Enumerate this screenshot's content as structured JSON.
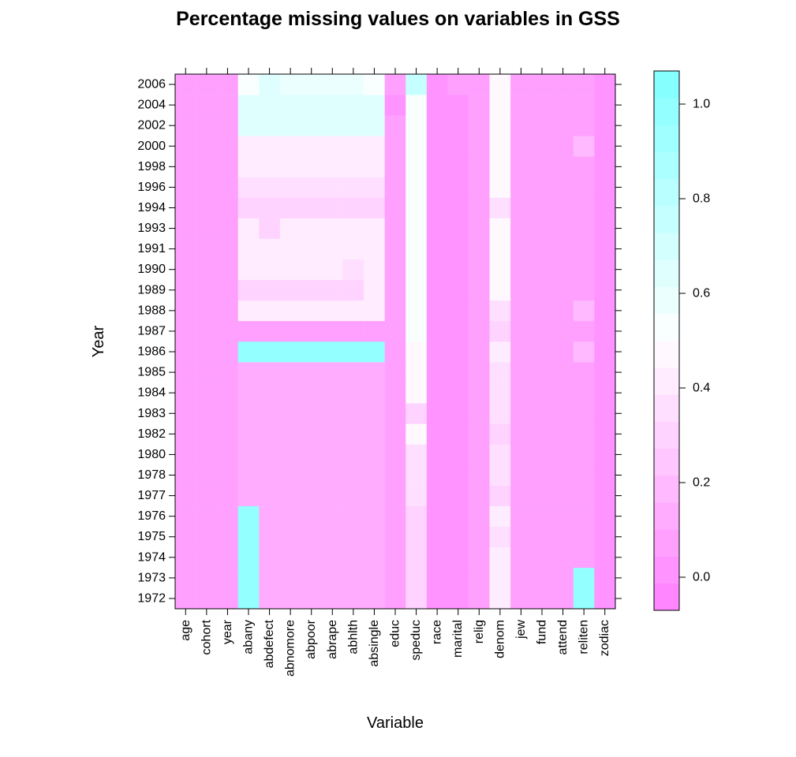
{
  "chart_data": {
    "type": "heatmap",
    "title": "Percentage missing values on variables in GSS",
    "xlabel": "Variable",
    "ylabel": "Year",
    "x_categories": [
      "age",
      "cohort",
      "year",
      "abany",
      "abdefect",
      "abnomore",
      "abpoor",
      "abrape",
      "abhlth",
      "absingle",
      "educ",
      "speduc",
      "race",
      "marital",
      "relig",
      "denom",
      "jew",
      "fund",
      "attend",
      "reliten",
      "zodiac"
    ],
    "y_categories": [
      "1972",
      "1973",
      "1974",
      "1975",
      "1976",
      "1977",
      "1978",
      "1980",
      "1982",
      "1983",
      "1984",
      "1985",
      "1986",
      "1987",
      "1988",
      "1989",
      "1990",
      "1991",
      "1993",
      "1994",
      "1996",
      "1998",
      "2000",
      "2002",
      "2004",
      "2006"
    ],
    "values": [
      [
        0.1,
        0.1,
        0.05,
        1.0,
        0.13,
        0.13,
        0.13,
        0.13,
        0.13,
        0.13,
        0.1,
        0.3,
        0.02,
        0.02,
        0.1,
        0.4,
        0.05,
        0.08,
        0.08,
        1.0,
        0.03
      ],
      [
        0.1,
        0.1,
        0.05,
        1.0,
        0.13,
        0.13,
        0.13,
        0.13,
        0.13,
        0.13,
        0.1,
        0.3,
        0.02,
        0.02,
        0.1,
        0.4,
        0.05,
        0.08,
        0.08,
        1.0,
        0.03
      ],
      [
        0.1,
        0.1,
        0.05,
        1.0,
        0.13,
        0.13,
        0.13,
        0.13,
        0.13,
        0.13,
        0.1,
        0.3,
        0.02,
        0.02,
        0.05,
        0.4,
        0.05,
        0.08,
        0.08,
        0.08,
        0.03
      ],
      [
        0.1,
        0.1,
        0.05,
        1.0,
        0.13,
        0.13,
        0.13,
        0.13,
        0.13,
        0.13,
        0.1,
        0.3,
        0.02,
        0.02,
        0.1,
        0.33,
        0.05,
        0.08,
        0.08,
        0.08,
        0.03
      ],
      [
        0.1,
        0.1,
        0.05,
        1.0,
        0.13,
        0.13,
        0.13,
        0.13,
        0.13,
        0.13,
        0.1,
        0.3,
        0.02,
        0.02,
        0.1,
        0.4,
        0.05,
        0.08,
        0.08,
        0.08,
        0.03
      ],
      [
        0.1,
        0.1,
        0.05,
        0.13,
        0.13,
        0.13,
        0.13,
        0.13,
        0.13,
        0.13,
        0.1,
        0.35,
        0.02,
        0.02,
        0.1,
        0.28,
        0.05,
        0.08,
        0.08,
        0.08,
        0.03
      ],
      [
        0.1,
        0.1,
        0.05,
        0.13,
        0.13,
        0.13,
        0.13,
        0.13,
        0.13,
        0.13,
        0.1,
        0.35,
        0.02,
        0.02,
        0.1,
        0.38,
        0.05,
        0.08,
        0.08,
        0.08,
        0.03
      ],
      [
        0.1,
        0.1,
        0.05,
        0.13,
        0.13,
        0.13,
        0.13,
        0.13,
        0.13,
        0.13,
        0.1,
        0.35,
        0.02,
        0.02,
        0.1,
        0.38,
        0.05,
        0.08,
        0.08,
        0.08,
        0.03
      ],
      [
        0.1,
        0.1,
        0.05,
        0.13,
        0.13,
        0.13,
        0.13,
        0.13,
        0.13,
        0.13,
        0.1,
        0.45,
        0.02,
        0.02,
        0.1,
        0.28,
        0.05,
        0.08,
        0.08,
        0.08,
        0.03
      ],
      [
        0.1,
        0.1,
        0.05,
        0.13,
        0.13,
        0.13,
        0.13,
        0.13,
        0.13,
        0.13,
        0.1,
        0.3,
        0.02,
        0.02,
        0.1,
        0.38,
        0.05,
        0.08,
        0.08,
        0.08,
        0.03
      ],
      [
        0.1,
        0.1,
        0.05,
        0.13,
        0.13,
        0.13,
        0.13,
        0.13,
        0.13,
        0.13,
        0.1,
        0.48,
        0.02,
        0.02,
        0.1,
        0.38,
        0.05,
        0.08,
        0.08,
        0.08,
        0.03
      ],
      [
        0.1,
        0.1,
        0.05,
        0.13,
        0.13,
        0.13,
        0.13,
        0.13,
        0.13,
        0.13,
        0.05,
        0.48,
        0.02,
        0.02,
        0.1,
        0.38,
        0.05,
        0.08,
        0.08,
        0.08,
        0.03
      ],
      [
        0.1,
        0.1,
        0.05,
        1.0,
        1.0,
        1.0,
        1.0,
        1.0,
        1.0,
        1.0,
        0.05,
        0.45,
        0.02,
        0.02,
        0.1,
        0.42,
        0.05,
        0.08,
        0.08,
        0.18,
        0.03
      ],
      [
        0.1,
        0.1,
        0.05,
        0.1,
        0.1,
        0.1,
        0.1,
        0.1,
        0.1,
        0.1,
        0.1,
        0.55,
        0.02,
        0.02,
        0.1,
        0.32,
        0.05,
        0.08,
        0.08,
        0.08,
        0.03
      ],
      [
        0.1,
        0.1,
        0.05,
        0.42,
        0.42,
        0.42,
        0.42,
        0.42,
        0.42,
        0.42,
        0.1,
        0.5,
        0.02,
        0.02,
        0.05,
        0.38,
        0.05,
        0.08,
        0.08,
        0.18,
        0.03
      ],
      [
        0.1,
        0.1,
        0.05,
        0.3,
        0.3,
        0.3,
        0.3,
        0.3,
        0.3,
        0.42,
        0.1,
        0.5,
        0.02,
        0.02,
        0.1,
        0.45,
        0.05,
        0.08,
        0.08,
        0.08,
        0.03
      ],
      [
        0.05,
        0.05,
        0.05,
        0.42,
        0.42,
        0.42,
        0.42,
        0.42,
        0.35,
        0.42,
        0.1,
        0.5,
        0.02,
        0.02,
        0.1,
        0.45,
        0.05,
        0.08,
        0.08,
        0.08,
        0.03
      ],
      [
        0.1,
        0.1,
        0.05,
        0.42,
        0.42,
        0.42,
        0.42,
        0.42,
        0.42,
        0.42,
        0.1,
        0.5,
        0.02,
        0.02,
        0.1,
        0.45,
        0.05,
        0.08,
        0.08,
        0.08,
        0.03
      ],
      [
        0.1,
        0.1,
        0.05,
        0.4,
        0.3,
        0.4,
        0.4,
        0.4,
        0.4,
        0.4,
        0.1,
        0.5,
        0.02,
        0.02,
        0.1,
        0.45,
        0.05,
        0.08,
        0.08,
        0.08,
        0.03
      ],
      [
        0.1,
        0.1,
        0.05,
        0.3,
        0.3,
        0.3,
        0.3,
        0.3,
        0.3,
        0.3,
        0.1,
        0.5,
        0.02,
        0.02,
        0.1,
        0.38,
        0.05,
        0.08,
        0.08,
        0.08,
        0.03
      ],
      [
        0.1,
        0.1,
        0.05,
        0.38,
        0.38,
        0.38,
        0.38,
        0.38,
        0.38,
        0.38,
        0.1,
        0.55,
        0.02,
        0.02,
        0.1,
        0.45,
        0.05,
        0.08,
        0.08,
        0.08,
        0.03
      ],
      [
        0.1,
        0.1,
        0.05,
        0.4,
        0.4,
        0.4,
        0.4,
        0.4,
        0.4,
        0.4,
        0.1,
        0.55,
        0.02,
        0.02,
        0.1,
        0.45,
        0.05,
        0.08,
        0.08,
        0.08,
        0.03
      ],
      [
        0.1,
        0.1,
        0.05,
        0.4,
        0.4,
        0.4,
        0.4,
        0.4,
        0.4,
        0.4,
        0.1,
        0.55,
        0.02,
        0.02,
        0.1,
        0.45,
        0.05,
        0.08,
        0.08,
        0.18,
        0.03
      ],
      [
        0.1,
        0.1,
        0.05,
        0.65,
        0.65,
        0.65,
        0.65,
        0.65,
        0.65,
        0.65,
        0.1,
        0.55,
        0.02,
        0.02,
        0.1,
        0.45,
        0.05,
        0.08,
        0.08,
        0.08,
        0.03
      ],
      [
        0.1,
        0.1,
        0.05,
        0.65,
        0.65,
        0.65,
        0.65,
        0.65,
        0.65,
        0.65,
        0.02,
        0.5,
        0.02,
        0.02,
        0.1,
        0.45,
        0.05,
        0.08,
        0.08,
        0.08,
        0.03
      ],
      [
        0.1,
        0.1,
        0.05,
        0.55,
        0.65,
        0.6,
        0.6,
        0.6,
        0.6,
        0.55,
        0.1,
        0.75,
        0.02,
        0.1,
        0.1,
        0.45,
        0.05,
        0.08,
        0.08,
        0.08,
        0.03
      ]
    ],
    "colorkey": {
      "ticks": [
        0.0,
        0.2,
        0.4,
        0.6,
        0.8,
        1.0
      ],
      "range": [
        -0.07,
        1.07
      ],
      "breaks": 20,
      "low_color": "#ff80ff",
      "mid_color": "#ffffff",
      "high_color": "#80ffff"
    },
    "grid": false
  }
}
